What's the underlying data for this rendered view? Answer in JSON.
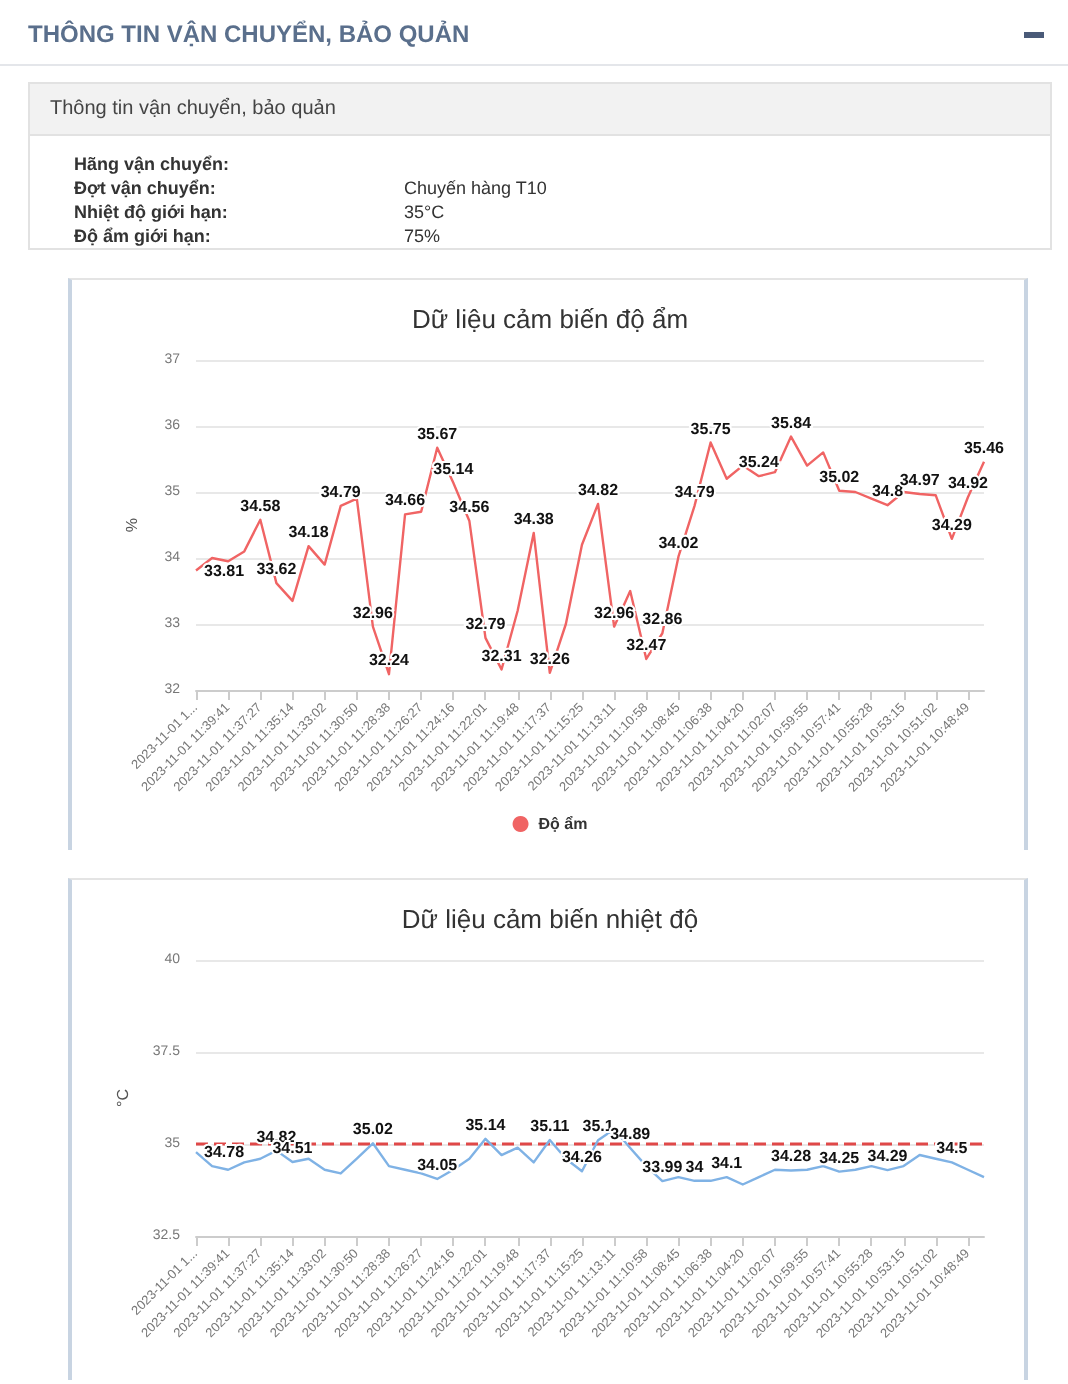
{
  "chart_data": [
    {
      "type": "other",
      "title": "THÔNG TIN VẬN CHUYỂN, BẢO QUẢN",
      "subtitle": "Thông tin vận chuyển, bảo quản",
      "annotations": [
        "Hãng vận chuyển:",
        "Đợt vận chuyển:",
        "Nhiệt độ giới hạn:",
        "Độ ẩm giới hạn:",
        "Chuyến hàng T10",
        "35°C",
        "75%"
      ]
    },
    {
      "type": "line",
      "title": "Dữ liệu cảm biến độ ẩm",
      "ylabel": "%",
      "categories": [
        "2023-11-01 1...",
        null,
        "2023-11-01 11:39:41",
        null,
        "2023-11-01 11:37:27",
        null,
        "2023-11-01 11:35:14",
        null,
        "2023-11-01 11:33:02",
        null,
        "2023-11-01 11:30:50",
        null,
        "2023-11-01 11:28:38",
        null,
        "2023-11-01 11:26:27",
        null,
        "2023-11-01 11:24:16",
        null,
        "2023-11-01 11:22:01",
        null,
        "2023-11-01 11:19:48",
        null,
        "2023-11-01 11:17:37",
        null,
        "2023-11-01 11:15:25",
        null,
        "2023-11-01 11:13:11",
        null,
        "2023-11-01 11:10:58",
        null,
        "2023-11-01 11:08:45",
        null,
        "2023-11-01 11:06:38",
        null,
        "2023-11-01 11:04:20",
        null,
        "2023-11-01 11:02:07",
        null,
        "2023-11-01 10:59:55",
        null,
        "2023-11-01 10:57:41",
        null,
        "2023-11-01 10:55:28",
        null,
        "2023-11-01 10:53:15",
        null,
        "2023-11-01 10:51:02",
        null,
        "2023-11-01 10:48:49",
        null
      ],
      "series": [
        {
          "name": "Độ ẩm",
          "color": "#f06464",
          "values": [
            33.81,
            34.0,
            33.95,
            34.1,
            34.58,
            33.62,
            33.35,
            34.18,
            33.9,
            34.79,
            34.9,
            32.96,
            32.24,
            34.66,
            34.7,
            35.67,
            35.14,
            34.56,
            32.79,
            32.31,
            33.2,
            34.38,
            32.26,
            33.0,
            34.2,
            34.82,
            32.96,
            33.5,
            32.47,
            32.86,
            34.02,
            34.79,
            35.75,
            35.2,
            35.4,
            35.24,
            35.3,
            35.84,
            35.4,
            35.6,
            35.02,
            35.0,
            34.9,
            34.8,
            35.0,
            34.97,
            34.95,
            34.29,
            34.92,
            35.46
          ],
          "value_labels": [
            "33.81",
            null,
            null,
            null,
            "34.58",
            "33.62",
            null,
            "34.18",
            null,
            "34.79",
            null,
            "32.96",
            "32.24",
            "34.66",
            null,
            "35.67",
            "35.14",
            "34.56",
            "32.79",
            "32.31",
            null,
            "34.38",
            "32.26",
            null,
            null,
            "34.82",
            "32.96",
            null,
            "32.47",
            "32.86",
            "34.02",
            "34.79",
            "35.75",
            null,
            null,
            "35.24",
            null,
            "35.84",
            null,
            null,
            "35.02",
            null,
            null,
            "34.8",
            null,
            "34.97",
            null,
            "34.29",
            "34.92",
            "35.46"
          ]
        }
      ],
      "ylim": [
        32,
        37
      ],
      "yticks": [
        32,
        33,
        34,
        35,
        36,
        37
      ],
      "grid": "y",
      "legend": "bottom"
    },
    {
      "type": "line",
      "title": "Dữ liệu cảm biến nhiệt độ",
      "ylabel": "°C",
      "categories": [
        "2023-11-01 1...",
        null,
        "2023-11-01 11:39:41",
        null,
        "2023-11-01 11:37:27",
        null,
        "2023-11-01 11:35:14",
        null,
        "2023-11-01 11:33:02",
        null,
        "2023-11-01 11:30:50",
        null,
        "2023-11-01 11:28:38",
        null,
        "2023-11-01 11:26:27",
        null,
        "2023-11-01 11:24:16",
        null,
        "2023-11-01 11:22:01",
        null,
        "2023-11-01 11:19:48",
        null,
        "2023-11-01 11:17:37",
        null,
        "2023-11-01 11:15:25",
        null,
        "2023-11-01 11:13:11",
        null,
        "2023-11-01 11:10:58",
        null,
        "2023-11-01 11:08:45",
        null,
        "2023-11-01 11:06:38",
        null,
        "2023-11-01 11:04:20",
        null,
        "2023-11-01 11:02:07",
        null,
        "2023-11-01 10:59:55",
        null,
        "2023-11-01 10:57:41",
        null,
        "2023-11-01 10:55:28",
        null,
        "2023-11-01 10:53:15",
        null,
        "2023-11-01 10:51:02",
        null,
        "2023-11-01 10:48:49",
        null
      ],
      "series": [
        {
          "color": "#7fb2e5",
          "values": [
            34.78,
            34.4,
            34.3,
            34.5,
            34.6,
            34.82,
            34.51,
            34.6,
            34.3,
            34.2,
            34.6,
            35.02,
            34.4,
            34.3,
            34.2,
            34.05,
            34.3,
            34.6,
            35.14,
            34.7,
            34.9,
            34.5,
            35.11,
            34.6,
            34.26,
            35.1,
            35.4,
            34.89,
            34.4,
            33.99,
            34.1,
            34,
            34.0,
            34.1,
            33.9,
            34.1,
            34.3,
            34.28,
            34.3,
            34.4,
            34.25,
            34.3,
            34.4,
            34.29,
            34.4,
            34.7,
            34.6,
            34.5,
            34.3,
            34.1
          ],
          "value_labels": [
            "34.78",
            null,
            null,
            null,
            null,
            "34.82",
            "34.51",
            null,
            null,
            null,
            null,
            "35.02",
            null,
            null,
            null,
            "34.05",
            null,
            null,
            "35.14",
            null,
            null,
            null,
            "35.11",
            null,
            "34.26",
            "35.1",
            null,
            "34.89",
            null,
            "33.99",
            null,
            "34",
            null,
            "34.1",
            null,
            null,
            null,
            "34.28",
            null,
            null,
            "34.25",
            null,
            null,
            "34.29",
            null,
            null,
            null,
            "34.5",
            null,
            null
          ]
        }
      ],
      "ylim": [
        32.5,
        40
      ],
      "yticks": [
        32.5,
        35,
        37.5,
        40
      ],
      "grid": "y",
      "ref_lines": [
        {
          "axis": "y",
          "value": 35,
          "color": "#e04848",
          "line_style": "dashed"
        }
      ]
    }
  ]
}
